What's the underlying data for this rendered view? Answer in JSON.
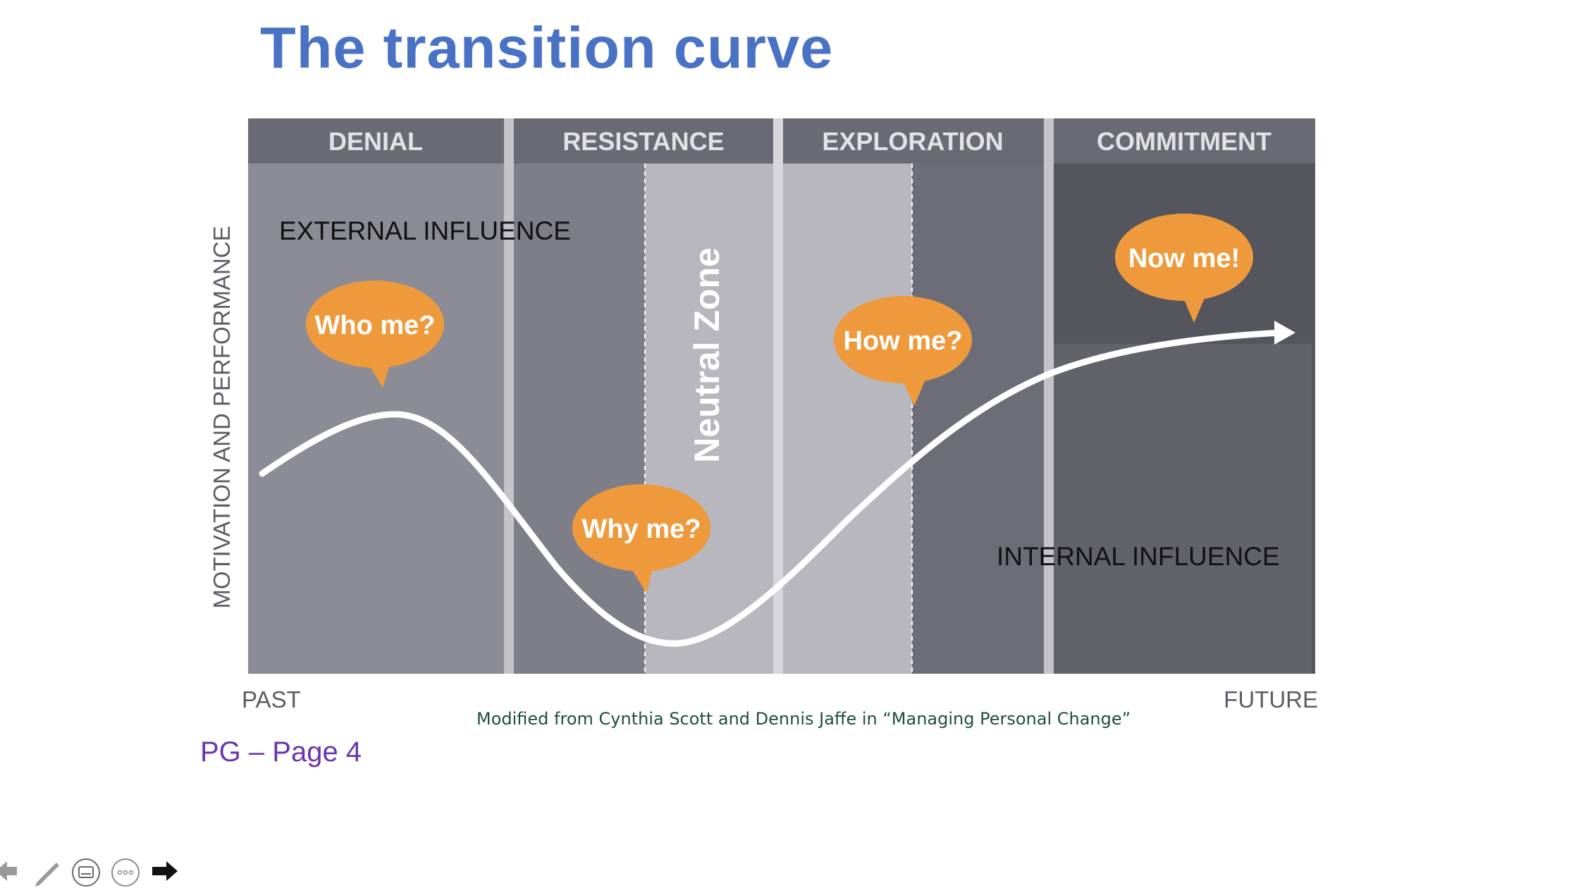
{
  "title": "The transition curve",
  "phases": [
    "DENIAL",
    "RESISTANCE",
    "EXPLORATION",
    "COMMITMENT"
  ],
  "labels": {
    "external_influence": "EXTERNAL INFLUENCE",
    "internal_influence": "INTERNAL INFLUENCE",
    "neutral_zone": "Neutral Zone",
    "y_axis": "MOTIVATION AND PERFORMANCE",
    "x_start": "PAST",
    "x_end": "FUTURE"
  },
  "bubbles": {
    "who": "Who me?",
    "why": "Why me?",
    "how": "How me?",
    "now": "Now me!"
  },
  "caption": "Modified from Cynthia Scott and Dennis Jaffe in “Managing Personal Change”",
  "page_ref": "PG – Page 4",
  "toolbar": {
    "icons": [
      "back-arrow-icon",
      "pen-icon",
      "subtitles-icon",
      "more-options-icon",
      "forward-arrow-icon"
    ]
  },
  "colors": {
    "title": "#4a72c4",
    "bubble": "#ee9a3c",
    "header": "#6a6a74",
    "denial_bg": "#8c8c96",
    "resistance_bg": "#7e7e88",
    "neutral_bg": "#b7b7bd",
    "exploration_dark_bg": "#6d6d77",
    "commitment_bg": "#55555d",
    "caption": "#1f4e3d",
    "page_ref": "#6a35b0"
  }
}
